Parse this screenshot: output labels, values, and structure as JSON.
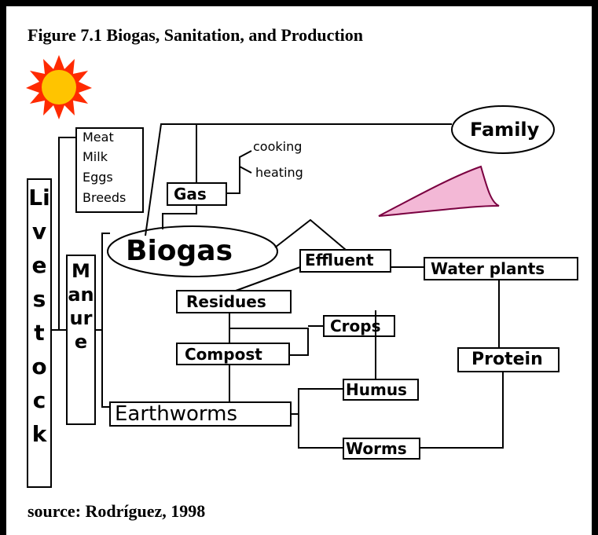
{
  "figure": {
    "title": "Figure 7.1  Biogas, Sanitation, and Production",
    "source": "source: Rodríguez, 1998"
  },
  "nodes": [
    {
      "label": "Livestock"
    },
    {
      "label": "Manure"
    },
    {
      "label": "Meat"
    },
    {
      "label": "Milk"
    },
    {
      "label": "Eggs"
    },
    {
      "label": "Breeds"
    },
    {
      "label": "Gas"
    },
    {
      "label": "cooking"
    },
    {
      "label": "heating"
    },
    {
      "label": "Family"
    },
    {
      "label": "Biogas"
    },
    {
      "label": "Effluent"
    },
    {
      "label": "Water plants"
    },
    {
      "label": "Residues"
    },
    {
      "label": "Crops"
    },
    {
      "label": "Compost"
    },
    {
      "label": "Protein"
    },
    {
      "label": "Humus"
    },
    {
      "label": "Earthworms"
    },
    {
      "label": "Worms"
    }
  ]
}
